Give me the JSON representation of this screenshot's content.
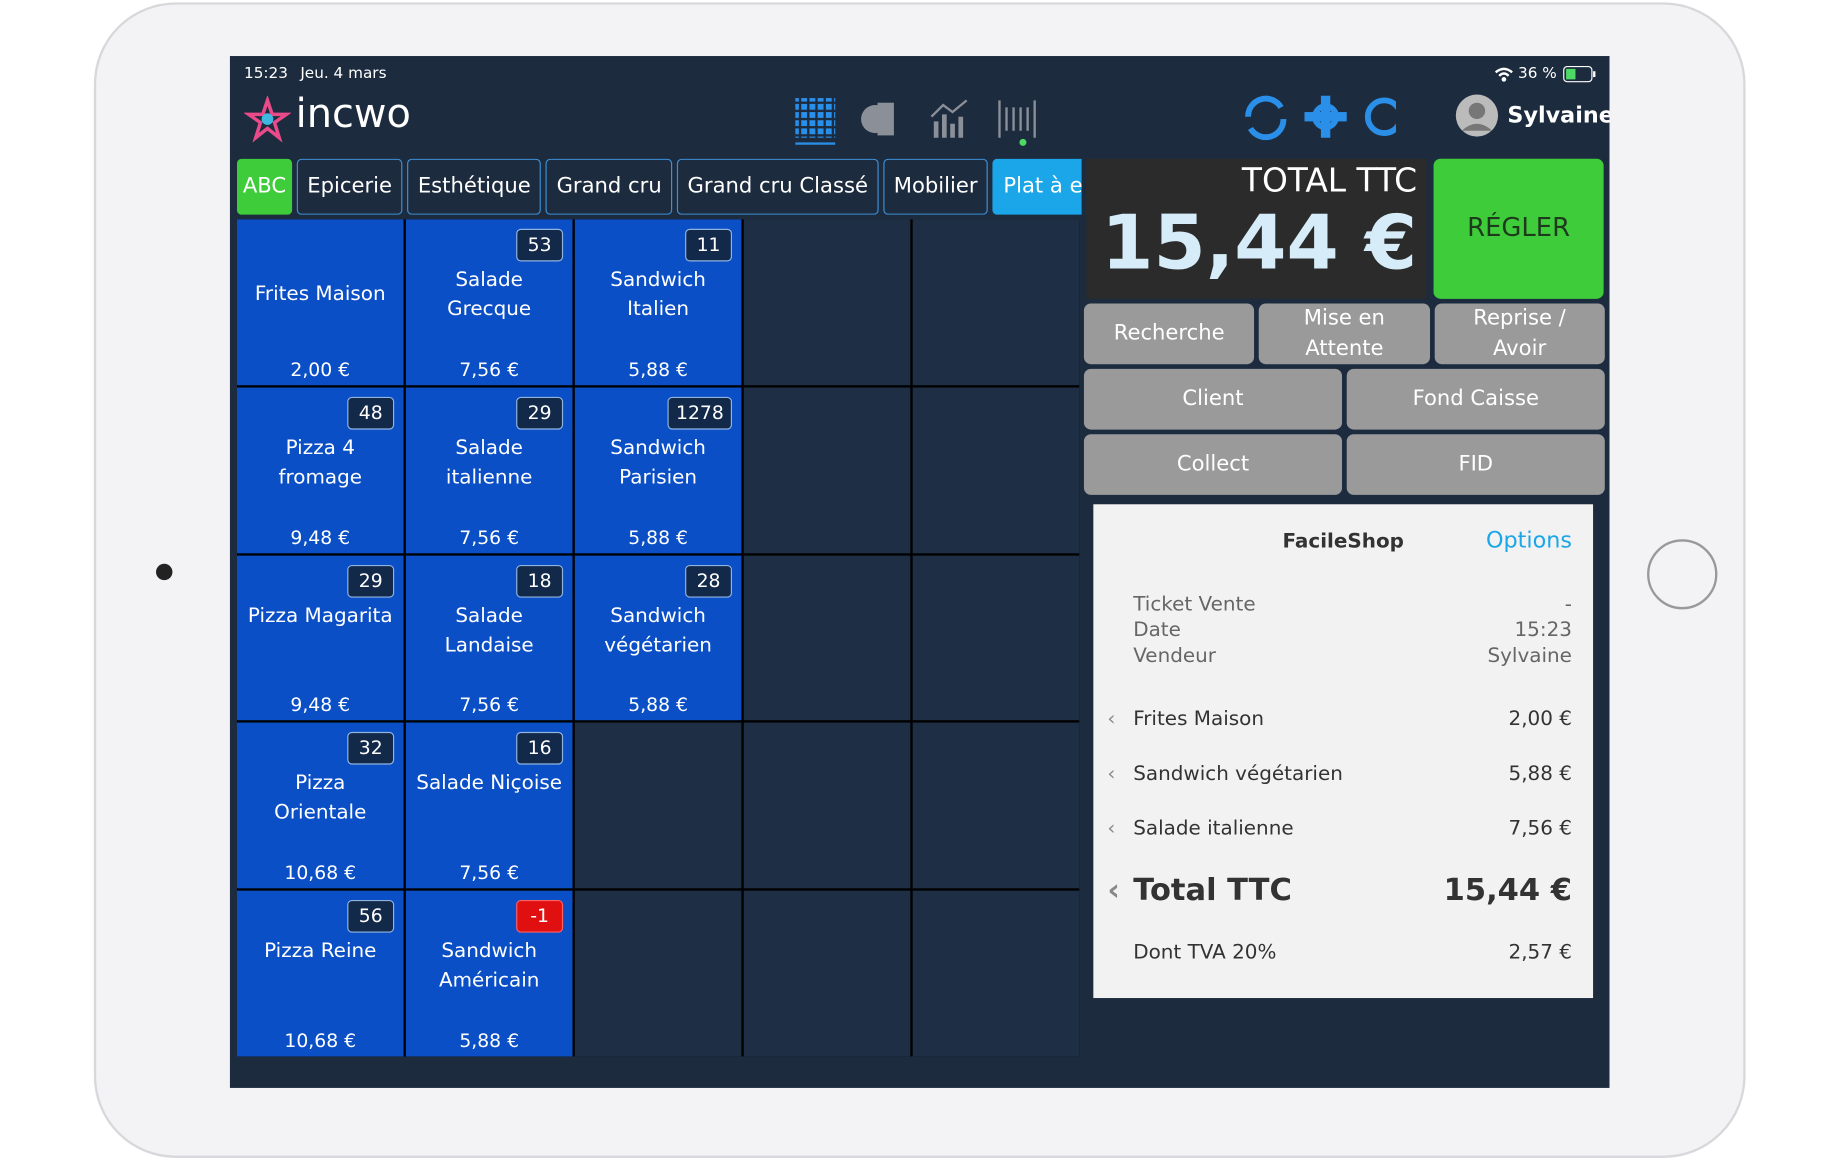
{
  "status": {
    "time": "15:23",
    "date": "Jeu. 4 mars",
    "battery": "36 %"
  },
  "header": {
    "logo": "incwo",
    "user": "Sylvaine"
  },
  "tabs": [
    "ABC",
    "Epicerie",
    "Esthétique",
    "Grand cru",
    "Grand cru Classé",
    "Mobilier",
    "Plat à emporter"
  ],
  "products": [
    [
      {
        "name": "Frites Maison",
        "price": "2,00 €"
      },
      {
        "name": "Salade Grecque",
        "price": "7,56 €",
        "stock": "53"
      },
      {
        "name": "Sandwich Italien",
        "price": "5,88 €",
        "stock": "11"
      }
    ],
    [
      {
        "name": "Pizza 4 fromage",
        "price": "9,48 €",
        "stock": "48"
      },
      {
        "name": "Salade italienne",
        "price": "7,56 €",
        "stock": "29"
      },
      {
        "name": "Sandwich Parisien",
        "price": "5,88 €",
        "stock": "1278"
      }
    ],
    [
      {
        "name": "Pizza Magarita",
        "price": "9,48 €",
        "stock": "29"
      },
      {
        "name": "Salade Landaise",
        "price": "7,56 €",
        "stock": "18"
      },
      {
        "name": "Sandwich végétarien",
        "price": "5,88 €",
        "stock": "28"
      }
    ],
    [
      {
        "name": "Pizza Orientale",
        "price": "10,68 €",
        "stock": "32"
      },
      {
        "name": "Salade Niçoise",
        "price": "7,56 €",
        "stock": "16"
      }
    ],
    [
      {
        "name": "Pizza Reine",
        "price": "10,68 €",
        "stock": "56"
      },
      {
        "name": "Sandwich Américain",
        "price": "5,88 €",
        "stock": "-1"
      }
    ]
  ],
  "total": {
    "label": "TOTAL TTC",
    "amount": "15,44 €",
    "pay": "RÉGLER"
  },
  "actions": [
    [
      "Recherche",
      "Mise en Attente",
      "Reprise / Avoir"
    ],
    [
      "Client",
      "Fond Caisse"
    ],
    [
      "Collect",
      "FID"
    ]
  ],
  "receipt": {
    "shop": "FacileShop",
    "options": "Options",
    "info": [
      [
        "Ticket Vente",
        "-"
      ],
      [
        "Date",
        "15:23"
      ],
      [
        "Vendeur",
        "Sylvaine"
      ]
    ],
    "items": [
      [
        "Frites Maison",
        "2,00 €"
      ],
      [
        "Sandwich végétarien",
        "5,88 €"
      ],
      [
        "Salade italienne",
        "7,56 €"
      ]
    ],
    "total": [
      "Total TTC",
      "15,44 €"
    ],
    "tax": [
      "Dont TVA 20%",
      "2,57 €"
    ]
  }
}
